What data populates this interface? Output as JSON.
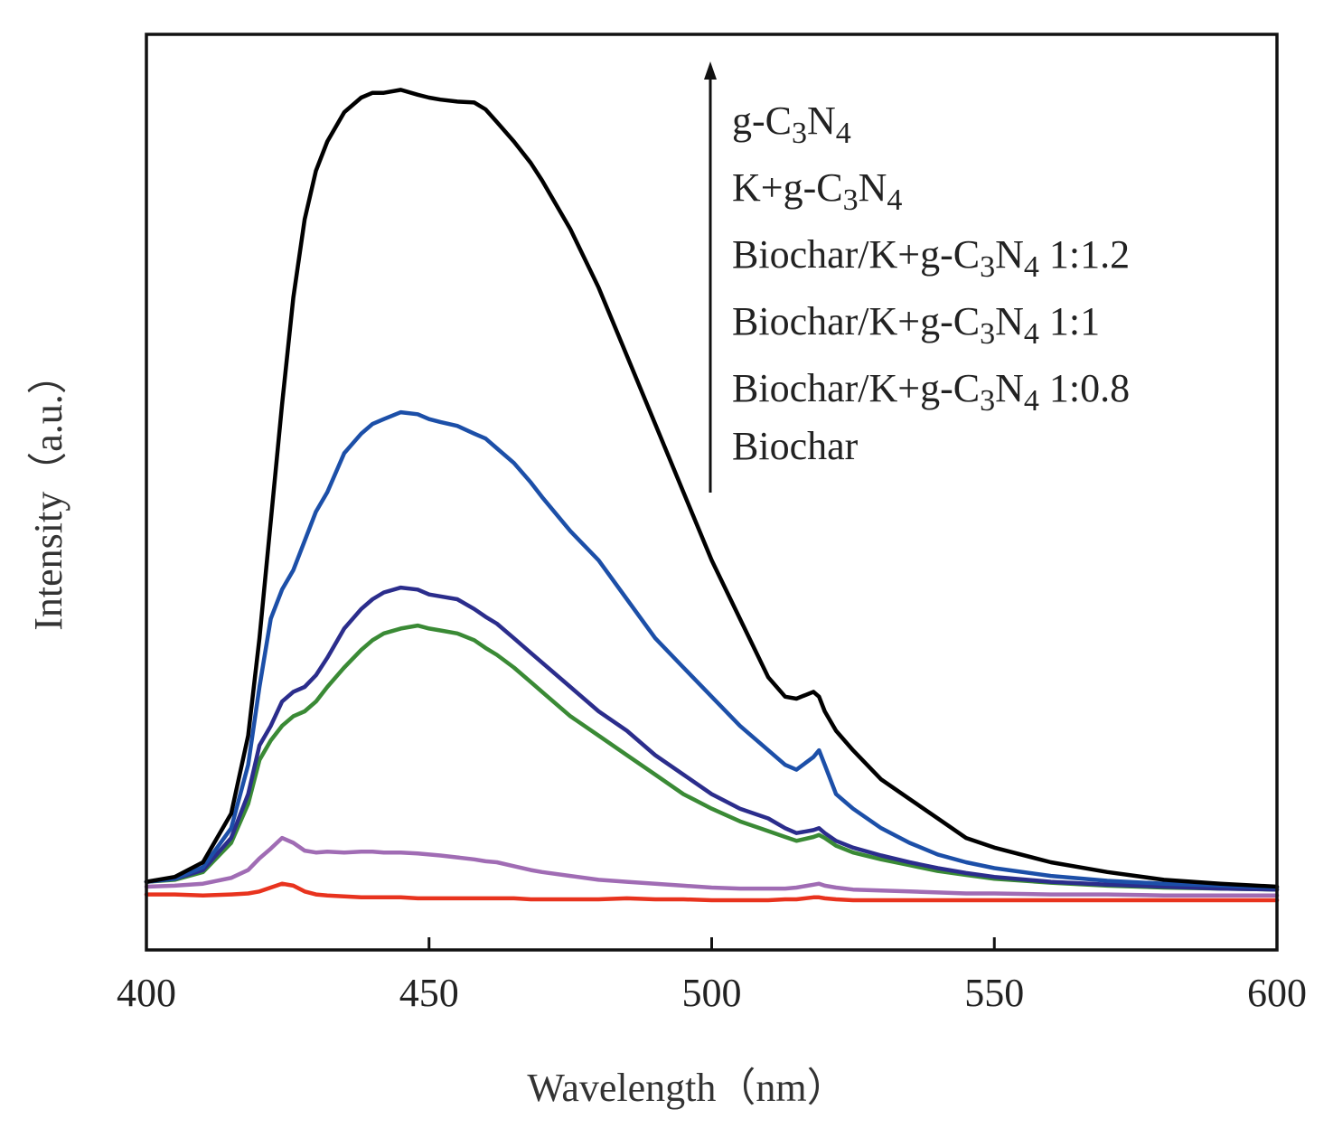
{
  "chart_data": {
    "type": "line",
    "title": "",
    "xlabel": "Wavelength（nm）",
    "ylabel": "Intensity（a.u.）",
    "xlim": [
      400,
      600
    ],
    "ylim": [
      -0.06,
      0.88
    ],
    "xticks": [
      400,
      450,
      500,
      550,
      600
    ],
    "x": [
      400,
      405,
      410,
      415,
      418,
      420,
      422,
      424,
      426,
      428,
      430,
      432,
      435,
      438,
      440,
      442,
      445,
      448,
      450,
      452,
      455,
      458,
      460,
      462,
      465,
      468,
      470,
      475,
      480,
      485,
      490,
      495,
      500,
      505,
      510,
      513,
      515,
      518,
      519,
      520,
      522,
      525,
      530,
      535,
      540,
      545,
      550,
      560,
      570,
      580,
      590,
      600
    ],
    "series": [
      {
        "name": "g-C3N4",
        "color": "#000000",
        "values": [
          0.01,
          0.015,
          0.03,
          0.08,
          0.16,
          0.26,
          0.38,
          0.5,
          0.61,
          0.69,
          0.74,
          0.77,
          0.8,
          0.815,
          0.82,
          0.82,
          0.823,
          0.818,
          0.815,
          0.813,
          0.811,
          0.81,
          0.803,
          0.79,
          0.77,
          0.748,
          0.73,
          0.68,
          0.62,
          0.55,
          0.48,
          0.41,
          0.34,
          0.28,
          0.22,
          0.2,
          0.198,
          0.205,
          0.2,
          0.185,
          0.165,
          0.145,
          0.115,
          0.095,
          0.075,
          0.055,
          0.045,
          0.03,
          0.02,
          0.012,
          0.008,
          0.005
        ]
      },
      {
        "name": "K+g-C3N4",
        "color": "#1c4fa8",
        "values": [
          0.01,
          0.013,
          0.025,
          0.065,
          0.13,
          0.21,
          0.28,
          0.31,
          0.33,
          0.36,
          0.39,
          0.41,
          0.45,
          0.47,
          0.48,
          0.485,
          0.492,
          0.49,
          0.485,
          0.482,
          0.478,
          0.47,
          0.465,
          0.455,
          0.44,
          0.42,
          0.405,
          0.37,
          0.34,
          0.3,
          0.26,
          0.23,
          0.2,
          0.17,
          0.145,
          0.13,
          0.125,
          0.138,
          0.145,
          0.13,
          0.1,
          0.085,
          0.065,
          0.05,
          0.038,
          0.03,
          0.024,
          0.016,
          0.011,
          0.008,
          0.006,
          0.004
        ]
      },
      {
        "name": "Biochar/K+g-C3N4 1:1.2",
        "color": "#2b2d8c",
        "values": [
          0.01,
          0.013,
          0.022,
          0.055,
          0.1,
          0.15,
          0.17,
          0.195,
          0.205,
          0.21,
          0.222,
          0.24,
          0.27,
          0.29,
          0.3,
          0.307,
          0.312,
          0.31,
          0.305,
          0.303,
          0.3,
          0.29,
          0.282,
          0.275,
          0.26,
          0.245,
          0.235,
          0.21,
          0.185,
          0.165,
          0.14,
          0.12,
          0.1,
          0.085,
          0.075,
          0.065,
          0.06,
          0.063,
          0.065,
          0.06,
          0.052,
          0.045,
          0.037,
          0.03,
          0.024,
          0.019,
          0.015,
          0.01,
          0.007,
          0.005,
          0.003,
          0.002
        ]
      },
      {
        "name": "Biochar/K+g-C3N4 1:1",
        "color": "#3a8a35",
        "values": [
          0.01,
          0.012,
          0.02,
          0.05,
          0.09,
          0.135,
          0.155,
          0.17,
          0.18,
          0.185,
          0.195,
          0.21,
          0.23,
          0.248,
          0.258,
          0.265,
          0.27,
          0.273,
          0.27,
          0.268,
          0.265,
          0.258,
          0.25,
          0.243,
          0.23,
          0.215,
          0.205,
          0.18,
          0.16,
          0.14,
          0.12,
          0.1,
          0.085,
          0.072,
          0.062,
          0.056,
          0.052,
          0.056,
          0.058,
          0.055,
          0.047,
          0.04,
          0.033,
          0.027,
          0.021,
          0.017,
          0.013,
          0.009,
          0.006,
          0.004,
          0.003,
          0.002
        ]
      },
      {
        "name": "Biochar/K+g-C3N4 1:0.8",
        "color": "#a06cb4",
        "values": [
          0.005,
          0.006,
          0.008,
          0.014,
          0.022,
          0.034,
          0.044,
          0.055,
          0.05,
          0.042,
          0.04,
          0.041,
          0.04,
          0.041,
          0.041,
          0.04,
          0.04,
          0.039,
          0.038,
          0.037,
          0.035,
          0.033,
          0.031,
          0.03,
          0.026,
          0.022,
          0.02,
          0.016,
          0.012,
          0.01,
          0.008,
          0.006,
          0.004,
          0.003,
          0.003,
          0.003,
          0.004,
          0.007,
          0.008,
          0.006,
          0.004,
          0.002,
          0.001,
          0.0,
          -0.001,
          -0.002,
          -0.002,
          -0.003,
          -0.003,
          -0.004,
          -0.004,
          -0.004
        ]
      },
      {
        "name": "Biochar",
        "color": "#e8331e",
        "values": [
          -0.003,
          -0.003,
          -0.004,
          -0.003,
          -0.002,
          0.0,
          0.004,
          0.008,
          0.006,
          0.0,
          -0.003,
          -0.004,
          -0.005,
          -0.006,
          -0.006,
          -0.006,
          -0.006,
          -0.007,
          -0.007,
          -0.007,
          -0.007,
          -0.007,
          -0.007,
          -0.007,
          -0.007,
          -0.008,
          -0.008,
          -0.008,
          -0.008,
          -0.007,
          -0.008,
          -0.008,
          -0.009,
          -0.009,
          -0.009,
          -0.008,
          -0.008,
          -0.006,
          -0.006,
          -0.007,
          -0.008,
          -0.009,
          -0.009,
          -0.009,
          -0.009,
          -0.009,
          -0.009,
          -0.009,
          -0.009,
          -0.009,
          -0.009,
          -0.009
        ]
      }
    ],
    "legend": {
      "entries": [
        {
          "prefix": "g-C",
          "s1": "3",
          "mid": "N",
          "s2": "4",
          "suffix": ""
        },
        {
          "prefix": "K+g-C",
          "s1": "3",
          "mid": "N",
          "s2": "4",
          "suffix": ""
        },
        {
          "prefix": "Biochar/K+g-C",
          "s1": "3",
          "mid": "N",
          "s2": "4",
          "suffix": " 1:1.2"
        },
        {
          "prefix": "Biochar/K+g-C",
          "s1": "3",
          "mid": "N",
          "s2": "4",
          "suffix": " 1:1"
        },
        {
          "prefix": "Biochar/K+g-C",
          "s1": "3",
          "mid": "N",
          "s2": "4",
          "suffix": " 1:0.8"
        },
        {
          "prefix": "Biochar",
          "s1": "",
          "mid": "",
          "s2": "",
          "suffix": ""
        }
      ],
      "placement": "top-right",
      "arrow": "up"
    },
    "grid": false
  }
}
